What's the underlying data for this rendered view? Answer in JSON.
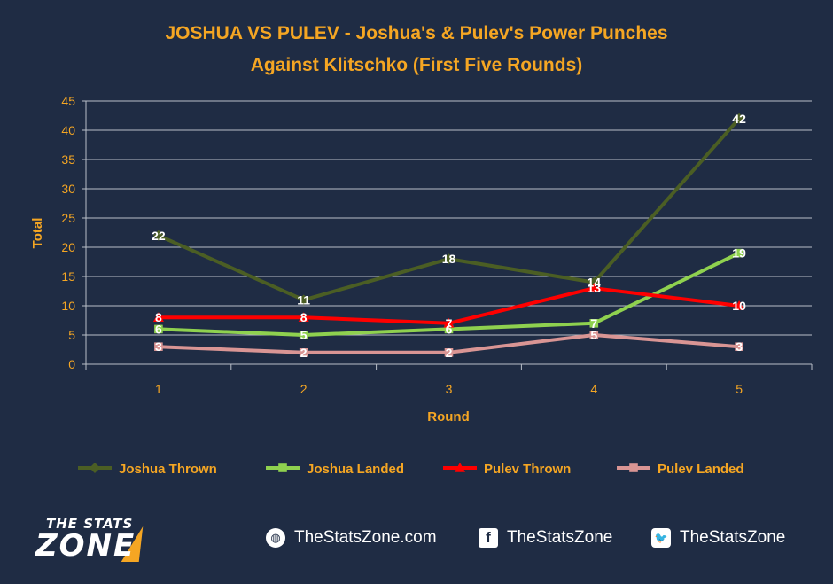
{
  "chart_data": {
    "type": "line",
    "title_line1": "JOSHUA VS PULEV - Joshua's & Pulev's Power Punches",
    "title_line2": "Against Klitschko (First Five Rounds)",
    "xlabel": "Round",
    "ylabel": "Total",
    "x": [
      "1",
      "2",
      "3",
      "4",
      "5"
    ],
    "ylim": [
      0,
      45
    ],
    "yticks": [
      "0",
      "5",
      "10",
      "15",
      "20",
      "25",
      "30",
      "35",
      "40",
      "45"
    ],
    "grid": true,
    "legend_position": "bottom",
    "series": [
      {
        "name": "Joshua Thrown",
        "values": [
          22,
          11,
          18,
          14,
          42
        ],
        "color": "#4b5e24",
        "marker": "diamond",
        "label_color": "#ffffff"
      },
      {
        "name": "Joshua Landed",
        "values": [
          6,
          5,
          6,
          7,
          19
        ],
        "color": "#8fd14f",
        "marker": "square",
        "label_color": "#ffffff"
      },
      {
        "name": "Pulev Thrown",
        "values": [
          8,
          8,
          7,
          13,
          10
        ],
        "color": "#ff0000",
        "marker": "triangle",
        "label_color": "#ffffff"
      },
      {
        "name": "Pulev Landed",
        "values": [
          3,
          2,
          2,
          5,
          3
        ],
        "color": "#d99594",
        "marker": "square",
        "label_color": "#ffffff"
      }
    ]
  },
  "footer": {
    "logo_top": "THE STATS",
    "logo_main": "ZONE",
    "website": "TheStatsZone.com",
    "facebook": "TheStatsZone",
    "twitter": "TheStatsZone",
    "icons": [
      "globe-icon",
      "facebook-icon",
      "twitter-icon"
    ]
  }
}
